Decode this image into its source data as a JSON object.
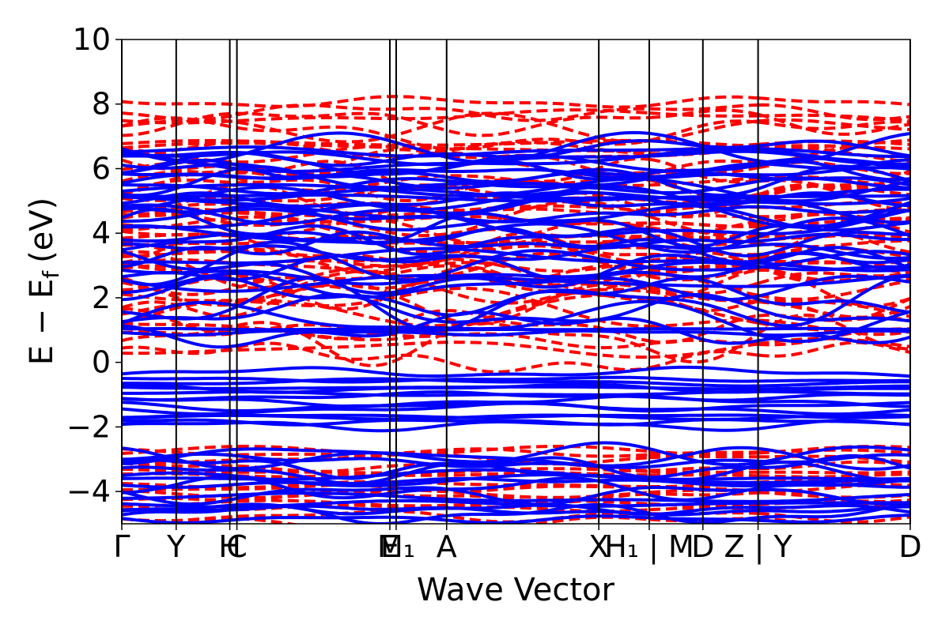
{
  "chart_data": {
    "type": "line",
    "xlabel": "Wave Vector",
    "ylabel": "E − E",
    "ylabel_sub": "f",
    "ylabel_unit": "(eV)",
    "ylim": [
      -5,
      10
    ],
    "xlim": [
      0,
      1
    ],
    "yticks": [
      -4,
      -2,
      0,
      2,
      4,
      6,
      8,
      10
    ],
    "ytick_labels": [
      "−4",
      "−2",
      "0",
      "2",
      "4",
      "6",
      "8",
      "10"
    ],
    "kpoints": [
      {
        "x": 0.0,
        "label": "Γ"
      },
      {
        "x": 0.069,
        "label": "Y"
      },
      {
        "x": 0.137,
        "label": "H"
      },
      {
        "x": 0.146,
        "label": "C"
      },
      {
        "x": 0.34,
        "label": "E"
      },
      {
        "x": 0.348,
        "label": "M₁"
      },
      {
        "x": 0.412,
        "label": "A"
      },
      {
        "x": 0.605,
        "label": "X"
      },
      {
        "x": 0.669,
        "label": "H₁ | M"
      },
      {
        "x": 0.737,
        "label": "D"
      },
      {
        "x": 0.807,
        "label": "Z | Y"
      },
      {
        "x": 1.0,
        "label": "D"
      }
    ],
    "series": [
      {
        "style": "solid",
        "color": "#0000ff",
        "band_count": 72
      },
      {
        "style": "dashed",
        "color": "#ff0000",
        "band_count": 60
      }
    ],
    "colors": {
      "solid": "#0000ff",
      "dashed": "#ff0000",
      "frame": "#000000"
    }
  }
}
